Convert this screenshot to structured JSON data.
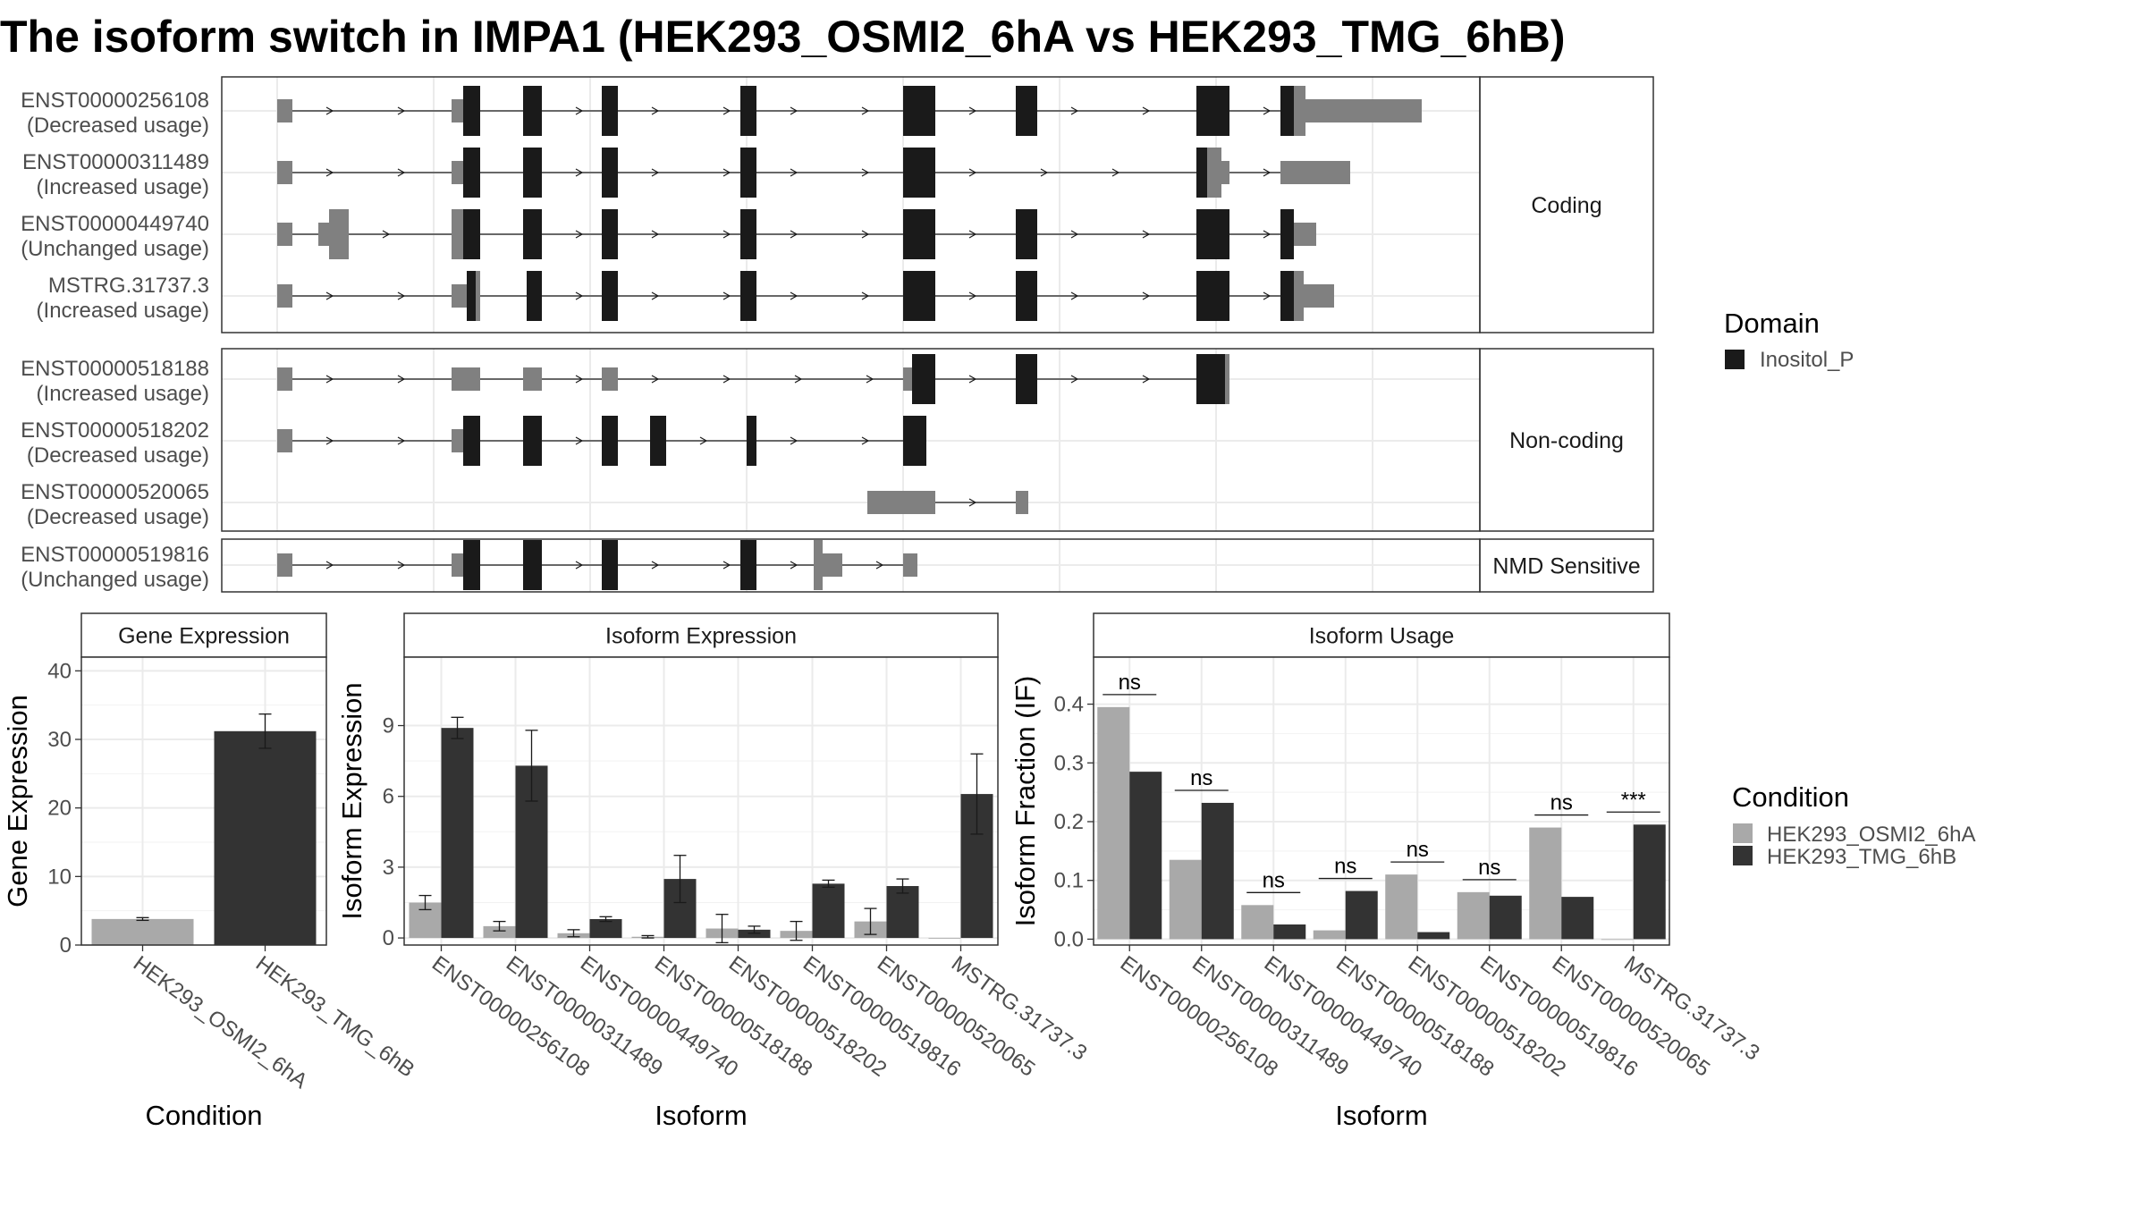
{
  "title": "The isoform switch in IMPA1 (HEK293_OSMI2_6hA vs HEK293_TMG_6hB)",
  "colors": {
    "domain": "#1a1a1a",
    "utr": "#808080",
    "cond_a": "#a9a9a9",
    "cond_b": "#333333",
    "panel_border": "#333333",
    "grid": "#ebebeb",
    "strip_bg": "#ffffff"
  },
  "structure": {
    "groups": [
      {
        "label": "Coding",
        "transcripts": [
          {
            "id": "ENST00000256108",
            "usage": "(Decreased usage)"
          },
          {
            "id": "ENST00000311489",
            "usage": "(Increased usage)"
          },
          {
            "id": "ENST00000449740",
            "usage": "(Unchanged usage)"
          },
          {
            "id": "MSTRG.31737.3",
            "usage": "(Increased usage)"
          }
        ]
      },
      {
        "label": "Non-coding",
        "transcripts": [
          {
            "id": "ENST00000518188",
            "usage": "(Increased usage)"
          },
          {
            "id": "ENST00000518202",
            "usage": "(Decreased usage)"
          },
          {
            "id": "ENST00000520065",
            "usage": "(Decreased usage)"
          }
        ]
      },
      {
        "label": "NMD Sensitive",
        "transcripts": [
          {
            "id": "ENST00000519816",
            "usage": "(Unchanged usage)"
          }
        ]
      }
    ],
    "domain_legend": {
      "title": "Domain",
      "items": [
        "Inositol_P"
      ]
    }
  },
  "chart_data": [
    {
      "type": "bar",
      "title": "Gene Expression",
      "xlabel": "Condition",
      "ylabel": "Gene Expression",
      "categories": [
        "HEK293_OSMI2_6hA",
        "HEK293_TMG_6hB"
      ],
      "values": [
        3.8,
        31.2
      ],
      "errors": [
        0.2,
        2.5
      ],
      "ylim": [
        0,
        42
      ],
      "yticks": [
        0,
        10,
        20,
        30,
        40
      ],
      "grid": true
    },
    {
      "type": "bar",
      "title": "Isoform Expression",
      "xlabel": "Isoform",
      "ylabel": "Isoform Expression",
      "categories": [
        "ENST00000256108",
        "ENST00000311489",
        "ENST00000449740",
        "ENST00000518188",
        "ENST00000518202",
        "ENST00000519816",
        "ENST00000520065",
        "MSTRG.31737.3"
      ],
      "series": [
        {
          "name": "HEK293_OSMI2_6hA",
          "values": [
            1.5,
            0.5,
            0.2,
            0.05,
            0.4,
            0.3,
            0.7,
            0.0
          ],
          "errors": [
            0.3,
            0.2,
            0.15,
            0.05,
            0.6,
            0.4,
            0.55,
            0.0
          ]
        },
        {
          "name": "HEK293_TMG_6hB",
          "values": [
            8.9,
            7.3,
            0.8,
            2.5,
            0.35,
            2.3,
            2.2,
            6.1
          ],
          "errors": [
            0.45,
            1.5,
            0.1,
            1.0,
            0.15,
            0.15,
            0.3,
            1.7
          ]
        }
      ],
      "ylim": [
        -0.3,
        11.9
      ],
      "yticks": [
        0,
        3,
        6,
        9
      ],
      "grid": true
    },
    {
      "type": "bar",
      "title": "Isoform Usage",
      "xlabel": "Isoform",
      "ylabel": "Isoform Fraction (IF)",
      "categories": [
        "ENST00000256108",
        "ENST00000311489",
        "ENST00000449740",
        "ENST00000518188",
        "ENST00000518202",
        "ENST00000519816",
        "ENST00000520065",
        "MSTRG.31737.3"
      ],
      "series": [
        {
          "name": "HEK293_OSMI2_6hA",
          "values": [
            0.395,
            0.135,
            0.058,
            0.015,
            0.11,
            0.08,
            0.19,
            0.0
          ]
        },
        {
          "name": "HEK293_TMG_6hB",
          "values": [
            0.285,
            0.232,
            0.025,
            0.082,
            0.012,
            0.074,
            0.072,
            0.195
          ]
        }
      ],
      "significance": [
        "ns",
        "ns",
        "ns",
        "ns",
        "ns",
        "ns",
        "ns",
        "***"
      ],
      "ylim": [
        -0.01,
        0.48
      ],
      "yticks": [
        0.0,
        0.1,
        0.2,
        0.3,
        0.4
      ],
      "ytick_labels": [
        "0.0",
        "0.1",
        "0.2",
        "0.3",
        "0.4"
      ],
      "grid": true,
      "legend": {
        "title": "Condition",
        "position": "right"
      }
    }
  ]
}
